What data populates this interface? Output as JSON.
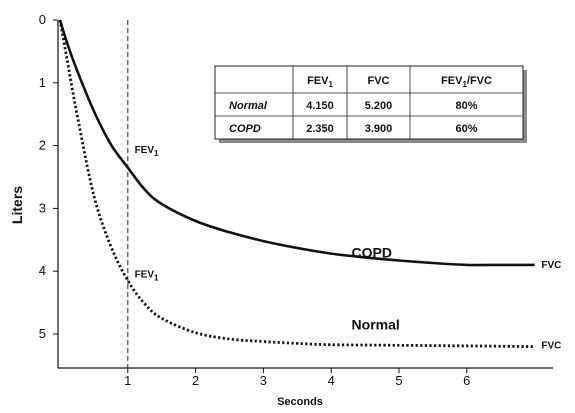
{
  "chart_data": {
    "type": "line",
    "title": "",
    "xlabel": "Seconds",
    "ylabel": "Liters",
    "xlim": [
      0,
      7.2
    ],
    "ylim": [
      0,
      5.5
    ],
    "y_inverted": true,
    "x_ticks": [
      1,
      2,
      3,
      4,
      5,
      6
    ],
    "y_ticks": [
      0,
      1,
      2,
      3,
      4,
      5
    ],
    "grid": false,
    "series": [
      {
        "name": "COPD",
        "style": "solid",
        "x": [
          0,
          0.1,
          0.25,
          0.5,
          0.75,
          1.0,
          1.25,
          1.5,
          2.0,
          2.5,
          3.0,
          3.5,
          4.0,
          4.5,
          5.0,
          5.5,
          6.0,
          6.5,
          7.0
        ],
        "y": [
          0.0,
          0.35,
          0.8,
          1.45,
          1.98,
          2.35,
          2.7,
          2.93,
          3.2,
          3.38,
          3.52,
          3.63,
          3.72,
          3.78,
          3.83,
          3.87,
          3.9,
          3.9,
          3.9
        ]
      },
      {
        "name": "Normal",
        "style": "dotted",
        "x": [
          0,
          0.1,
          0.25,
          0.5,
          0.75,
          1.0,
          1.25,
          1.5,
          2.0,
          2.5,
          3.0,
          3.5,
          4.0,
          5.0,
          6.0,
          7.0
        ],
        "y": [
          0.0,
          0.6,
          1.5,
          2.8,
          3.6,
          4.15,
          4.52,
          4.75,
          4.98,
          5.08,
          5.12,
          5.15,
          5.17,
          5.18,
          5.19,
          5.2
        ]
      }
    ],
    "reference_line": {
      "x": 1
    },
    "annotations": [
      {
        "id": "fev1-copd",
        "text": "FEV",
        "sub": "1",
        "x": 1.1,
        "y": 2.12
      },
      {
        "id": "fev1-normal",
        "text": "FEV",
        "sub": "1",
        "x": 1.1,
        "y": 4.1
      },
      {
        "id": "label-copd",
        "text": "COPD",
        "x": 4.3,
        "y": 3.78
      },
      {
        "id": "label-normal",
        "text": "Normal",
        "x": 4.3,
        "y": 4.93
      },
      {
        "id": "fvc-copd",
        "text": "FVC",
        "x": 7.1,
        "y": 3.95
      },
      {
        "id": "fvc-normal",
        "text": "FVC",
        "x": 7.1,
        "y": 5.23
      }
    ],
    "table": {
      "columns": [
        "",
        "FEV1",
        "FVC",
        "FEV1/FVC"
      ],
      "rows": [
        [
          "Normal",
          "4.150",
          "5.200",
          "80%"
        ],
        [
          "COPD",
          "2.350",
          "3.900",
          "60%"
        ]
      ]
    }
  }
}
